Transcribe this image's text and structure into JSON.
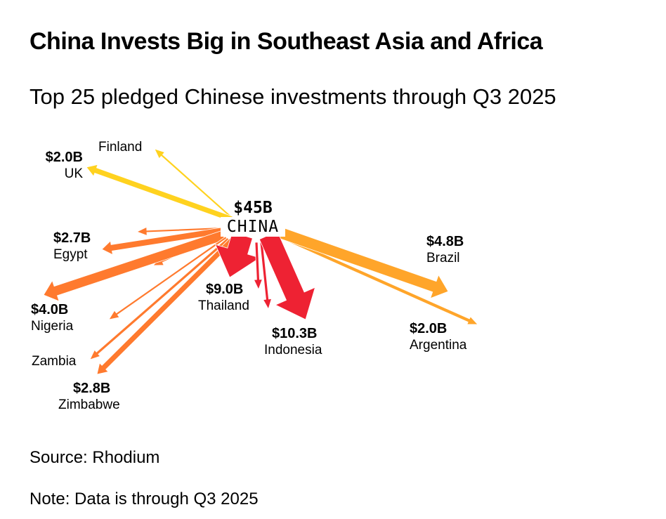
{
  "title": "China Invests Big in Southeast Asia and Africa",
  "subtitle": "Top 25 pledged Chinese investments through Q3 2025",
  "origin": {
    "name": "CHINA",
    "total": "$45B"
  },
  "colors": {
    "europe": "#FFD21F",
    "africa": "#FF7A2E",
    "asia": "#EE2233",
    "americas": "#FFA52A"
  },
  "chart_data": {
    "type": "flow-map",
    "flows": [
      {
        "name": "UK",
        "value": "$2.0B",
        "region": "europe"
      },
      {
        "name": "Finland",
        "value": null,
        "region": "europe"
      },
      {
        "name": "Egypt",
        "value": "$2.7B",
        "region": "africa"
      },
      {
        "name": "Nigeria",
        "value": "$4.0B",
        "region": "africa"
      },
      {
        "name": "Zambia",
        "value": null,
        "region": "africa"
      },
      {
        "name": "Zimbabwe",
        "value": "$2.8B",
        "region": "africa"
      },
      {
        "name": "Thailand",
        "value": "$9.0B",
        "region": "asia"
      },
      {
        "name": "Indonesia",
        "value": "$10.3B",
        "region": "asia"
      },
      {
        "name": "Brazil",
        "value": "$4.8B",
        "region": "americas"
      },
      {
        "name": "Argentina",
        "value": "$2.0B",
        "region": "americas"
      }
    ]
  },
  "source": "Source: Rhodium",
  "note": "Note: Data is through Q3 2025"
}
